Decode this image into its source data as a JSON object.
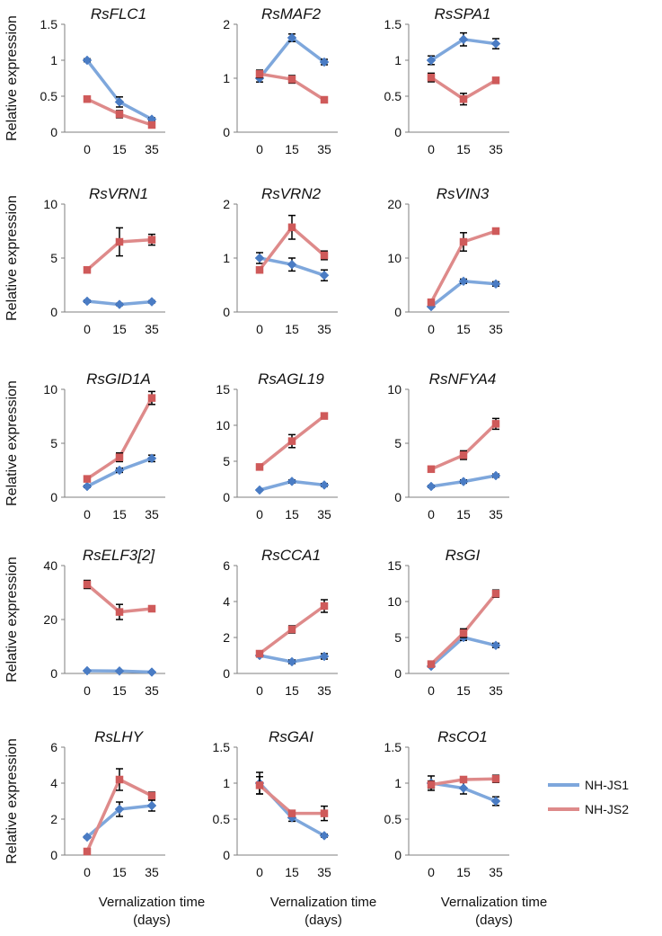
{
  "figure": {
    "ylabel": "Relative expression",
    "xlabel_line1": "Vernalization time",
    "xlabel_line2": "(days)",
    "colors": {
      "NH-JS1": "#7ea7dc",
      "NH-JS2": "#de8a8a",
      "errorbar": "#000000",
      "axis": "#7f7f7f"
    }
  },
  "legend": {
    "items": [
      {
        "label": "NH-JS1",
        "color": "#7ea7dc"
      },
      {
        "label": "NH-JS2",
        "color": "#de8a8a"
      }
    ]
  },
  "chart_data": [
    {
      "type": "line",
      "title": "RsFLC1",
      "categories": [
        "0",
        "15",
        "35"
      ],
      "yticks": [
        "0",
        "0.5",
        "1",
        "1.5"
      ],
      "ylim": [
        0,
        1.5
      ],
      "series": [
        {
          "name": "NH-JS1",
          "values": [
            1.0,
            0.42,
            0.18
          ],
          "errors": [
            0.02,
            0.07,
            0.02
          ]
        },
        {
          "name": "NH-JS2",
          "values": [
            0.46,
            0.25,
            0.1
          ],
          "errors": [
            0.01,
            0.05,
            0.01
          ]
        }
      ]
    },
    {
      "type": "line",
      "title": "RsMAF2",
      "categories": [
        "0",
        "15",
        "35"
      ],
      "yticks": [
        "0",
        "1",
        "2"
      ],
      "ylim": [
        0,
        2
      ],
      "series": [
        {
          "name": "NH-JS1",
          "values": [
            1.0,
            1.75,
            1.3
          ],
          "errors": [
            0.07,
            0.07,
            0.05
          ]
        },
        {
          "name": "NH-JS2",
          "values": [
            1.08,
            0.98,
            0.6
          ],
          "errors": [
            0.07,
            0.07,
            0.04
          ]
        }
      ]
    },
    {
      "type": "line",
      "title": "RsSPA1",
      "categories": [
        "0",
        "15",
        "35"
      ],
      "yticks": [
        "0",
        "0.5",
        "1",
        "1.5"
      ],
      "ylim": [
        0,
        1.5
      ],
      "series": [
        {
          "name": "NH-JS1",
          "values": [
            1.0,
            1.29,
            1.23
          ],
          "errors": [
            0.06,
            0.09,
            0.07
          ]
        },
        {
          "name": "NH-JS2",
          "values": [
            0.76,
            0.46,
            0.72
          ],
          "errors": [
            0.06,
            0.08,
            0.04
          ]
        }
      ]
    },
    {
      "type": "line",
      "title": "RsVRN1",
      "categories": [
        "0",
        "15",
        "35"
      ],
      "yticks": [
        "0",
        "5",
        "10"
      ],
      "ylim": [
        0,
        10
      ],
      "series": [
        {
          "name": "NH-JS1",
          "values": [
            1.0,
            0.7,
            0.95
          ],
          "errors": [
            0.1,
            0.1,
            0.1
          ]
        },
        {
          "name": "NH-JS2",
          "values": [
            3.9,
            6.5,
            6.7
          ],
          "errors": [
            0.2,
            1.3,
            0.5
          ]
        }
      ]
    },
    {
      "type": "line",
      "title": "RsVRN2",
      "categories": [
        "0",
        "15",
        "35"
      ],
      "yticks": [
        "0",
        "1",
        "2"
      ],
      "ylim": [
        0,
        2
      ],
      "series": [
        {
          "name": "NH-JS1",
          "values": [
            1.0,
            0.88,
            0.68
          ],
          "errors": [
            0.1,
            0.12,
            0.1
          ]
        },
        {
          "name": "NH-JS2",
          "values": [
            0.78,
            1.57,
            1.05
          ],
          "errors": [
            0.05,
            0.22,
            0.08
          ]
        }
      ]
    },
    {
      "type": "line",
      "title": "RsVIN3",
      "categories": [
        "0",
        "15",
        "35"
      ],
      "yticks": [
        "0",
        "10",
        "20"
      ],
      "ylim": [
        0,
        20
      ],
      "series": [
        {
          "name": "NH-JS1",
          "values": [
            1.0,
            5.7,
            5.2
          ],
          "errors": [
            0.1,
            0.4,
            0.4
          ]
        },
        {
          "name": "NH-JS2",
          "values": [
            1.8,
            13.0,
            15.0
          ],
          "errors": [
            0.2,
            1.7,
            0.3
          ]
        }
      ]
    },
    {
      "type": "line",
      "title": "RsGID1A",
      "categories": [
        "0",
        "15",
        "35"
      ],
      "yticks": [
        "0",
        "5",
        "10"
      ],
      "ylim": [
        0,
        10
      ],
      "series": [
        {
          "name": "NH-JS1",
          "values": [
            1.0,
            2.5,
            3.6
          ],
          "errors": [
            0.1,
            0.2,
            0.3
          ]
        },
        {
          "name": "NH-JS2",
          "values": [
            1.7,
            3.7,
            9.2
          ],
          "errors": [
            0.1,
            0.4,
            0.6
          ]
        }
      ]
    },
    {
      "type": "line",
      "title": "RsAGL19",
      "categories": [
        "0",
        "15",
        "35"
      ],
      "yticks": [
        "0",
        "5",
        "10",
        "15"
      ],
      "ylim": [
        0,
        15
      ],
      "series": [
        {
          "name": "NH-JS1",
          "values": [
            1.0,
            2.2,
            1.7
          ],
          "errors": [
            0.1,
            0.2,
            0.2
          ]
        },
        {
          "name": "NH-JS2",
          "values": [
            4.2,
            7.8,
            11.3
          ],
          "errors": [
            0.2,
            0.9,
            0.2
          ]
        }
      ]
    },
    {
      "type": "line",
      "title": "RsNFYA4",
      "categories": [
        "0",
        "15",
        "35"
      ],
      "yticks": [
        "0",
        "5",
        "10"
      ],
      "ylim": [
        0,
        10
      ],
      "series": [
        {
          "name": "NH-JS1",
          "values": [
            1.0,
            1.45,
            2.0
          ],
          "errors": [
            0.1,
            0.15,
            0.15
          ]
        },
        {
          "name": "NH-JS2",
          "values": [
            2.6,
            3.9,
            6.8
          ],
          "errors": [
            0.1,
            0.4,
            0.5
          ]
        }
      ]
    },
    {
      "type": "line",
      "title": "RsELF3[2]",
      "categories": [
        "0",
        "15",
        "35"
      ],
      "yticks": [
        "0",
        "20",
        "40"
      ],
      "ylim": [
        0,
        40
      ],
      "series": [
        {
          "name": "NH-JS1",
          "values": [
            1.0,
            0.9,
            0.5
          ],
          "errors": [
            0.1,
            0.1,
            0.1
          ]
        },
        {
          "name": "NH-JS2",
          "values": [
            33.0,
            22.8,
            24.0
          ],
          "errors": [
            1.5,
            2.8,
            0.5
          ]
        }
      ]
    },
    {
      "type": "line",
      "title": "RsCCA1",
      "categories": [
        "0",
        "15",
        "35"
      ],
      "yticks": [
        "0",
        "2",
        "4",
        "6"
      ],
      "ylim": [
        0,
        6
      ],
      "series": [
        {
          "name": "NH-JS1",
          "values": [
            1.0,
            0.65,
            0.95
          ],
          "errors": [
            0.08,
            0.1,
            0.15
          ]
        },
        {
          "name": "NH-JS2",
          "values": [
            1.1,
            2.45,
            3.75
          ],
          "errors": [
            0.08,
            0.2,
            0.35
          ]
        }
      ]
    },
    {
      "type": "line",
      "title": "RsGI",
      "categories": [
        "0",
        "15",
        "35"
      ],
      "yticks": [
        "0",
        "5",
        "10",
        "15"
      ],
      "ylim": [
        0,
        15
      ],
      "series": [
        {
          "name": "NH-JS1",
          "values": [
            1.0,
            5.0,
            3.9
          ],
          "errors": [
            0.1,
            0.4,
            0.3
          ]
        },
        {
          "name": "NH-JS2",
          "values": [
            1.3,
            5.6,
            11.1
          ],
          "errors": [
            0.1,
            0.6,
            0.5
          ]
        }
      ]
    },
    {
      "type": "line",
      "title": "RsLHY",
      "categories": [
        "0",
        "15",
        "35"
      ],
      "yticks": [
        "0",
        "2",
        "4",
        "6"
      ],
      "ylim": [
        0,
        6
      ],
      "series": [
        {
          "name": "NH-JS1",
          "values": [
            1.0,
            2.55,
            2.75
          ],
          "errors": [
            0.05,
            0.4,
            0.3
          ]
        },
        {
          "name": "NH-JS2",
          "values": [
            0.2,
            4.2,
            3.3
          ],
          "errors": [
            0.05,
            0.6,
            0.2
          ]
        }
      ]
    },
    {
      "type": "line",
      "title": "RsGAI",
      "categories": [
        "0",
        "15",
        "35"
      ],
      "yticks": [
        "0",
        "0.5",
        "1",
        "1.5"
      ],
      "ylim": [
        0,
        1.5
      ],
      "series": [
        {
          "name": "NH-JS1",
          "values": [
            1.0,
            0.52,
            0.27
          ],
          "errors": [
            0.15,
            0.05,
            0.02
          ]
        },
        {
          "name": "NH-JS2",
          "values": [
            0.97,
            0.58,
            0.58
          ],
          "errors": [
            0.12,
            0.04,
            0.1
          ]
        }
      ]
    },
    {
      "type": "line",
      "title": "RsCO1",
      "categories": [
        "0",
        "15",
        "35"
      ],
      "yticks": [
        "0",
        "0.5",
        "1",
        "1.5"
      ],
      "ylim": [
        0,
        1.5
      ],
      "series": [
        {
          "name": "NH-JS1",
          "values": [
            1.0,
            0.93,
            0.75
          ],
          "errors": [
            0.1,
            0.08,
            0.06
          ]
        },
        {
          "name": "NH-JS2",
          "values": [
            0.98,
            1.05,
            1.06
          ],
          "errors": [
            0.05,
            0.04,
            0.05
          ]
        }
      ]
    }
  ]
}
